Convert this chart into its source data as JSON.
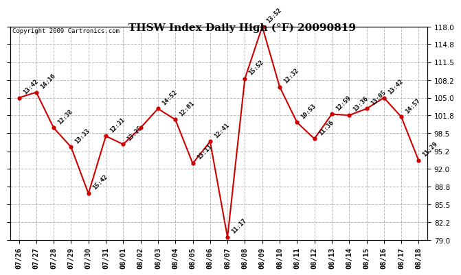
{
  "title": "THSW Index Daily High (°F) 20090819",
  "copyright": "Copyright 2009 Cartronics.com",
  "x_labels": [
    "07/26",
    "07/27",
    "07/28",
    "07/29",
    "07/30",
    "07/31",
    "08/01",
    "08/02",
    "08/03",
    "08/04",
    "08/05",
    "08/06",
    "08/07",
    "08/08",
    "08/09",
    "08/10",
    "08/11",
    "08/12",
    "08/13",
    "08/14",
    "08/15",
    "08/16",
    "08/17",
    "08/18"
  ],
  "y_values": [
    105.0,
    106.0,
    99.5,
    96.0,
    87.5,
    98.0,
    96.5,
    99.5,
    103.0,
    101.0,
    93.0,
    97.0,
    79.5,
    108.5,
    118.0,
    107.0,
    100.5,
    97.5,
    102.0,
    101.8,
    103.0,
    105.0,
    101.5,
    93.5
  ],
  "time_labels": [
    "13:42",
    "14:16",
    "12:38",
    "13:33",
    "15:42",
    "12:31",
    "13:25",
    "",
    "14:52",
    "12:01",
    "13:11",
    "12:41",
    "11:17",
    "15:52",
    "13:52",
    "12:32",
    "10:53",
    "11:36",
    "12:59",
    "13:36",
    "13:05",
    "13:42",
    "14:57",
    "11:29"
  ],
  "y_min": 79.0,
  "y_max": 118.0,
  "y_ticks": [
    79.0,
    82.2,
    85.5,
    88.8,
    92.0,
    95.2,
    98.5,
    101.8,
    105.0,
    108.2,
    111.5,
    114.8,
    118.0
  ],
  "line_color": "#cc0000",
  "marker_color": "#cc0000",
  "bg_color": "#ffffff",
  "plot_bg_color": "#ffffff",
  "grid_color": "#bbbbbb",
  "title_fontsize": 11,
  "label_fontsize": 6.5,
  "tick_fontsize": 7.5,
  "copyright_fontsize": 6.5
}
